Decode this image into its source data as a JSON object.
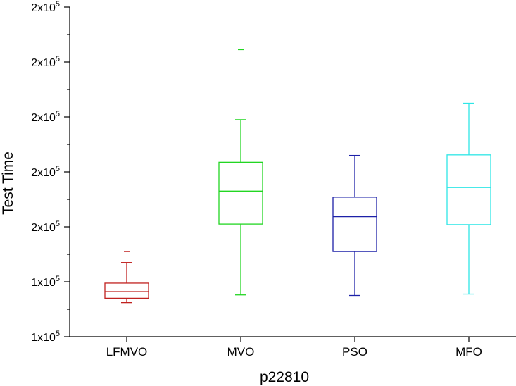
{
  "chart_data": {
    "type": "box",
    "title": "",
    "xlabel": "p22810",
    "ylabel": "Test Time",
    "ylim": [
      110000,
      230000
    ],
    "yticks": [
      {
        "value": 110000,
        "label": "1x10",
        "exp": "5"
      },
      {
        "value": 130000,
        "label": "1x10",
        "exp": "5"
      },
      {
        "value": 150000,
        "label": "2x10",
        "exp": "5"
      },
      {
        "value": 170000,
        "label": "2x10",
        "exp": "5"
      },
      {
        "value": 190000,
        "label": "2x10",
        "exp": "5"
      },
      {
        "value": 210000,
        "label": "2x10",
        "exp": "5"
      },
      {
        "value": 230000,
        "label": "2x10",
        "exp": "5"
      }
    ],
    "categories": [
      "LFMVO",
      "MVO",
      "PSO",
      "MFO"
    ],
    "series": [
      {
        "name": "LFMVO",
        "color": "#c0211f",
        "whisker_low": 122400,
        "q1": 124000,
        "median": 126400,
        "q3": 129500,
        "whisker_high": 137000,
        "outliers": [
          141000
        ]
      },
      {
        "name": "MVO",
        "color": "#22d622",
        "whisker_low": 125200,
        "q1": 151000,
        "median": 163000,
        "q3": 173500,
        "whisker_high": 189000,
        "outliers": [
          214500
        ]
      },
      {
        "name": "PSO",
        "color": "#1d21a8",
        "whisker_low": 125000,
        "q1": 141000,
        "median": 153700,
        "q3": 160800,
        "whisker_high": 176000,
        "outliers": []
      },
      {
        "name": "MFO",
        "color": "#2ee6e6",
        "whisker_low": 125500,
        "q1": 150800,
        "median": 164300,
        "q3": 176200,
        "whisker_high": 195000,
        "outliers": []
      }
    ]
  }
}
